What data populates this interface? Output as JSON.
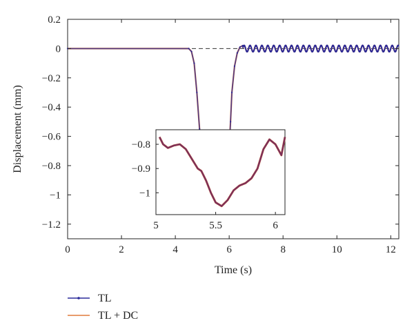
{
  "chart_data": [
    {
      "type": "line",
      "xlabel": "Time (s)",
      "ylabel": "Displacement (mm)",
      "xlim": [
        0,
        12.3
      ],
      "ylim": [
        -1.3,
        0.2
      ],
      "x_ticks": [
        0,
        2,
        4,
        6,
        8,
        10,
        12
      ],
      "x_tick_labels": [
        "0",
        "2",
        "4",
        "6",
        "8",
        "10",
        "12"
      ],
      "y_ticks": [
        0.2,
        0,
        -0.2,
        -0.4,
        -0.6,
        -0.8,
        -1,
        -1.2
      ],
      "y_tick_labels": [
        "0.2",
        "0",
        "−0.2",
        "−0.4",
        "−0.6",
        "−0.8",
        "−1",
        "−1.2"
      ],
      "grid": false,
      "reference_line": {
        "y": 0,
        "style": "dashed"
      },
      "legend_position": "below",
      "series": [
        {
          "name": "TL",
          "color": "#2a2a9a",
          "marker": "dot",
          "x": [
            0,
            4.5,
            4.6,
            4.7,
            4.8,
            4.9,
            4.95,
            5.0,
            5.05,
            5.1,
            5.15,
            5.2,
            5.3,
            5.4,
            5.5,
            5.55,
            5.6,
            5.7,
            5.8,
            5.9,
            5.95,
            6.0,
            6.05,
            6.1,
            6.2,
            6.3,
            6.4,
            6.5
          ],
          "y": [
            0,
            0,
            -0.02,
            -0.1,
            -0.3,
            -0.55,
            -0.72,
            -0.82,
            -0.85,
            -0.9,
            -0.93,
            -0.95,
            -0.99,
            -1.03,
            -1.05,
            -1.055,
            -1.04,
            -0.99,
            -0.93,
            -0.85,
            -0.78,
            -0.68,
            -0.5,
            -0.3,
            -0.12,
            -0.03,
            0.01,
            0.02
          ],
          "oscillation": {
            "start": 6.5,
            "end": 12.3,
            "period": 0.22,
            "amplitude": 0.022
          }
        },
        {
          "name": "TL + DC",
          "color": "#e07a3a",
          "marker": "none",
          "x": [
            0,
            4.5,
            4.6,
            4.7,
            4.8,
            4.9,
            4.95,
            5.0,
            5.05,
            5.1,
            5.15,
            5.2,
            5.3,
            5.4,
            5.5,
            5.55,
            5.6,
            5.7,
            5.8,
            5.9,
            5.95,
            6.0,
            6.05,
            6.1,
            6.2,
            6.3,
            6.4,
            6.5
          ],
          "y": [
            0,
            0,
            -0.02,
            -0.1,
            -0.3,
            -0.55,
            -0.72,
            -0.82,
            -0.85,
            -0.9,
            -0.93,
            -0.95,
            -0.99,
            -1.03,
            -1.05,
            -1.055,
            -1.04,
            -0.99,
            -0.93,
            -0.85,
            -0.78,
            -0.68,
            -0.5,
            -0.3,
            -0.12,
            -0.03,
            0.01,
            0.02
          ],
          "oscillation": {
            "start": 6.5,
            "end": 12.3,
            "period": 0.22,
            "amplitude": 0.022
          }
        }
      ]
    },
    {
      "type": "line",
      "role": "inset",
      "xlim": [
        5.0,
        6.08
      ],
      "ylim": [
        -1.09,
        -0.74
      ],
      "x_ticks": [
        5,
        5.5,
        6
      ],
      "x_tick_labels": [
        "5",
        "5.5",
        "6"
      ],
      "y_ticks": [
        -0.8,
        -0.9,
        -1
      ],
      "y_tick_labels": [
        "−0.8",
        "−0.9",
        "−1"
      ],
      "series": [
        {
          "name": "TL",
          "color": "#6a2260",
          "x": [
            5.03,
            5.06,
            5.1,
            5.15,
            5.2,
            5.25,
            5.3,
            5.35,
            5.38,
            5.42,
            5.46,
            5.5,
            5.55,
            5.6,
            5.65,
            5.7,
            5.75,
            5.8,
            5.85,
            5.9,
            5.95,
            6.0,
            6.05,
            6.08
          ],
          "y": [
            -0.77,
            -0.8,
            -0.815,
            -0.805,
            -0.8,
            -0.82,
            -0.86,
            -0.9,
            -0.91,
            -0.95,
            -1.0,
            -1.04,
            -1.055,
            -1.03,
            -0.99,
            -0.97,
            -0.96,
            -0.94,
            -0.9,
            -0.82,
            -0.78,
            -0.8,
            -0.845,
            -0.77
          ]
        },
        {
          "name": "TL + DC",
          "color": "#e07a3a",
          "x": [
            5.03,
            5.06,
            5.1,
            5.15,
            5.2,
            5.25,
            5.3,
            5.35,
            5.38,
            5.42,
            5.46,
            5.5,
            5.55,
            5.6,
            5.65,
            5.7,
            5.75,
            5.8,
            5.85,
            5.9,
            5.95,
            6.0,
            6.05,
            6.08
          ],
          "y": [
            -0.77,
            -0.8,
            -0.815,
            -0.805,
            -0.8,
            -0.82,
            -0.86,
            -0.9,
            -0.91,
            -0.95,
            -1.0,
            -1.04,
            -1.055,
            -1.03,
            -0.99,
            -0.97,
            -0.96,
            -0.94,
            -0.9,
            -0.82,
            -0.78,
            -0.8,
            -0.845,
            -0.77
          ]
        }
      ]
    }
  ]
}
